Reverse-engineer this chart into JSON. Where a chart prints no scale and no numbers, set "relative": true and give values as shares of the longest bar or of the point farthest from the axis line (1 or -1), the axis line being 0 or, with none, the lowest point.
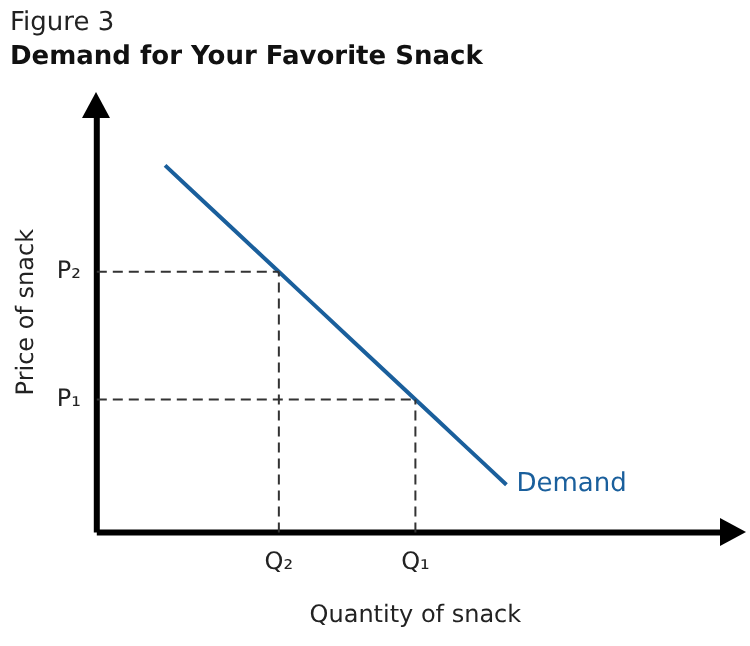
{
  "chart_data": {
    "type": "line",
    "relative": true,
    "title": "Demand for Your Favorite Snack",
    "annotations": [
      "Figure 3"
    ],
    "xlabel": "Quantity of snack",
    "ylabel": "Price of snack",
    "categories": [
      null,
      null,
      null,
      null,
      null,
      null,
      null,
      null,
      "Q₂",
      null,
      null,
      null,
      null,
      null,
      "Q₁",
      null,
      null,
      null,
      null,
      null,
      null,
      null,
      null,
      null,
      null,
      null,
      null,
      null,
      null
    ],
    "series": [
      {
        "name": "Demand",
        "color": "#1a5f9c",
        "values": [
          null,
          null,
          null,
          1,
          0.942,
          0.884,
          0.826,
          0.768,
          0.71,
          0.652,
          0.594,
          0.536,
          0.478,
          0.42,
          0.362,
          0.304,
          0.246,
          0.188,
          0.13,
          null,
          null,
          null,
          null,
          null,
          null,
          null,
          null,
          null,
          null
        ]
      }
    ],
    "ref_lines": [
      {
        "axis": "y",
        "value": 0.71,
        "label": "P₂",
        "line_style": "dashed",
        "color": "#333333"
      },
      {
        "axis": "y",
        "value": 0.362,
        "label": "P₁",
        "line_style": "dashed",
        "color": "#333333"
      },
      {
        "axis": "x",
        "value": "Q₂",
        "line_style": "dashed",
        "color": "#333333"
      },
      {
        "axis": "x",
        "value": "Q₁",
        "line_style": "dashed",
        "color": "#333333"
      }
    ],
    "marker": "none",
    "line_style": "solid",
    "grid": false,
    "legend": false,
    "tick_labels": "x"
  }
}
